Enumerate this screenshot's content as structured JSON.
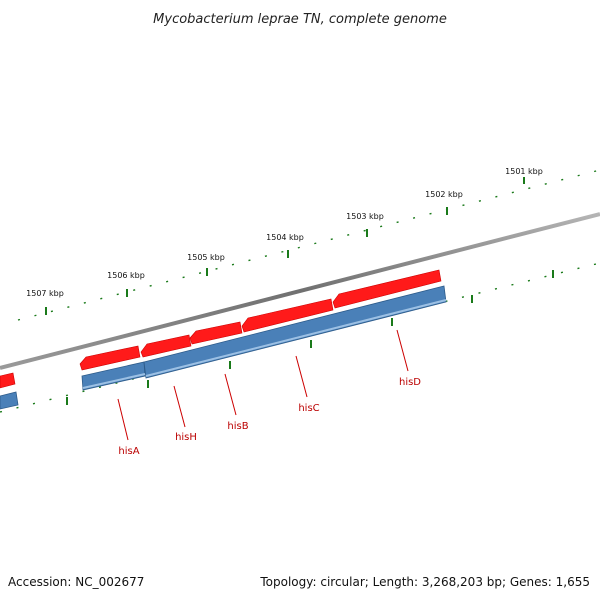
{
  "title": "Mycobacterium leprae TN, complete genome",
  "footer": {
    "accession": "Accession: NC_002677",
    "summary": "Topology: circular; Length: 3,268,203 bp; Genes: 1,655"
  },
  "ticks": [
    {
      "label": "1501 kbp"
    },
    {
      "label": "1502 kbp"
    },
    {
      "label": "1503 kbp"
    },
    {
      "label": "1504 kbp"
    },
    {
      "label": "1505 kbp"
    },
    {
      "label": "1506 kbp"
    },
    {
      "label": "1507 kbp"
    }
  ],
  "genes": [
    {
      "name": "hisA"
    },
    {
      "name": "hisH"
    },
    {
      "name": "hisB"
    },
    {
      "name": "hisC"
    },
    {
      "name": "hisD"
    }
  ],
  "colors": {
    "cds": "#ff1a1a",
    "gene": "#4a80b8",
    "backbone": "#7a7a7a",
    "tick": "#1a7a1a",
    "label": "#bb0000"
  }
}
